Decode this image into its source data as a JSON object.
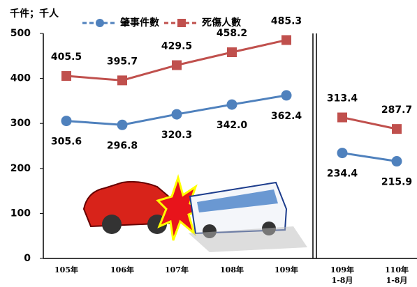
{
  "chart_data": {
    "type": "line",
    "y_label": "千件；千人",
    "categories": [
      "105年",
      "106年",
      "107年",
      "108年",
      "109年",
      "109年\n1-8月",
      "110年\n1-8月"
    ],
    "series": [
      {
        "name": "肇事件數",
        "color": "#4f81bd",
        "values": [
          305.6,
          296.8,
          320.3,
          342,
          362.4,
          234.4,
          215.9
        ],
        "value_labels": [
          "305.6",
          "296.8",
          "320.3",
          "342.0",
          "362.4",
          "234.4",
          "215.9"
        ]
      },
      {
        "name": "死傷人數",
        "color": "#c0504d",
        "values": [
          405.5,
          395.7,
          429.5,
          458.2,
          485.3,
          313.4,
          287.7
        ],
        "value_labels": [
          "405.5",
          "395.7",
          "429.5",
          "458.2",
          "485.3",
          "313.4",
          "287.7"
        ]
      }
    ],
    "ylim": [
      0,
      500
    ],
    "yticks": [
      0,
      100,
      200,
      300,
      400,
      500
    ],
    "grid": false
  }
}
